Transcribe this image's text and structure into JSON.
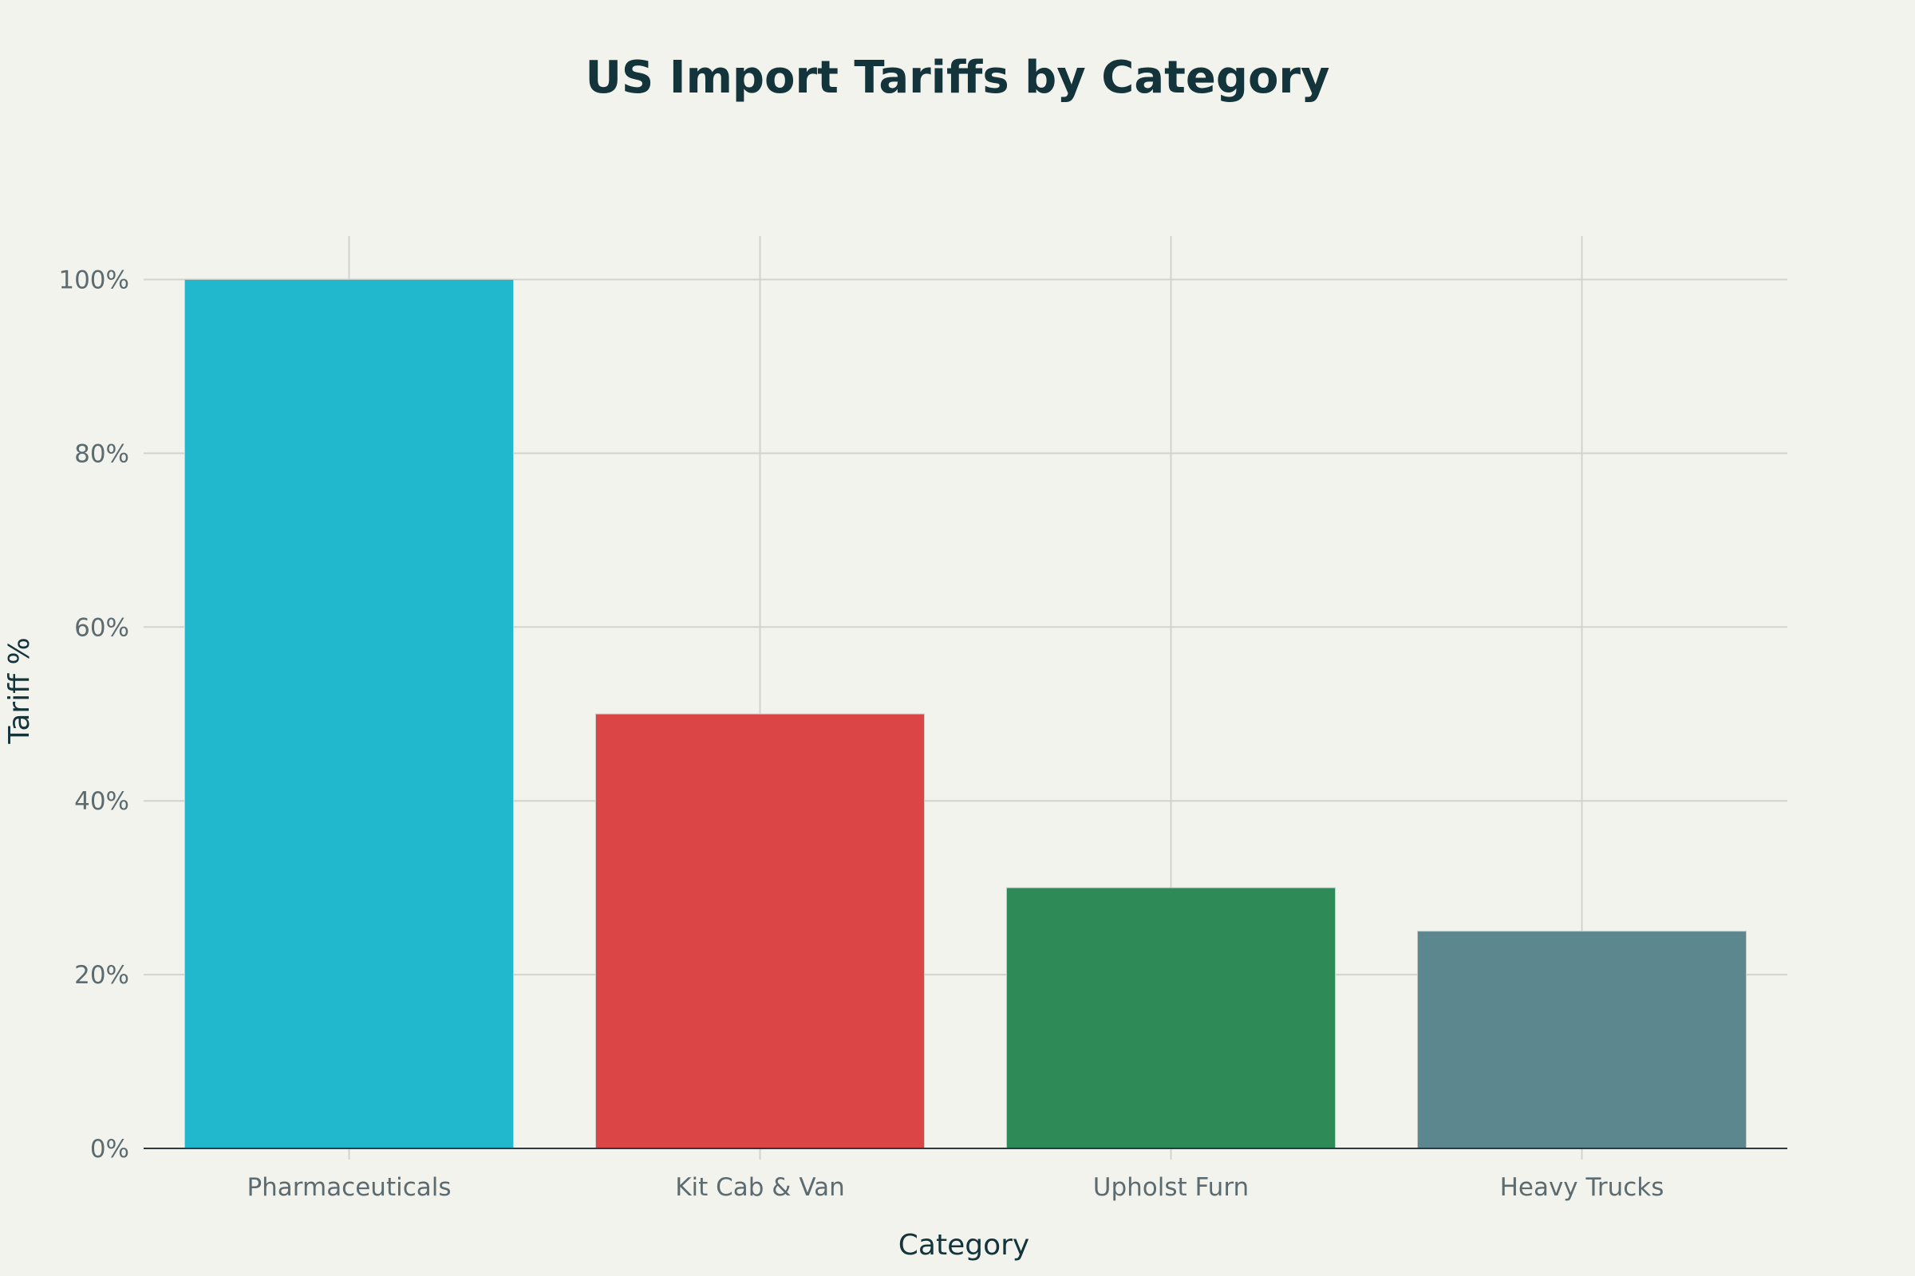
{
  "chart_data": {
    "type": "bar",
    "title": "US Import Tariffs by Category",
    "xlabel": "Category",
    "ylabel": "Tariff %",
    "categories": [
      "Pharmaceuticals",
      "Kit Cab & Van",
      "Upholst Furn",
      "Heavy Trucks"
    ],
    "values": [
      100,
      50,
      30,
      25
    ],
    "bar_colors": [
      "#21b8cd",
      "#db4545",
      "#2e8b57",
      "#5d878f"
    ],
    "ylim": [
      0,
      105
    ],
    "yticks": [
      0,
      20,
      40,
      60,
      80,
      100
    ],
    "ytick_labels": [
      "0%",
      "20%",
      "40%",
      "60%",
      "80%",
      "100%"
    ],
    "grid": true,
    "legend": "none"
  }
}
